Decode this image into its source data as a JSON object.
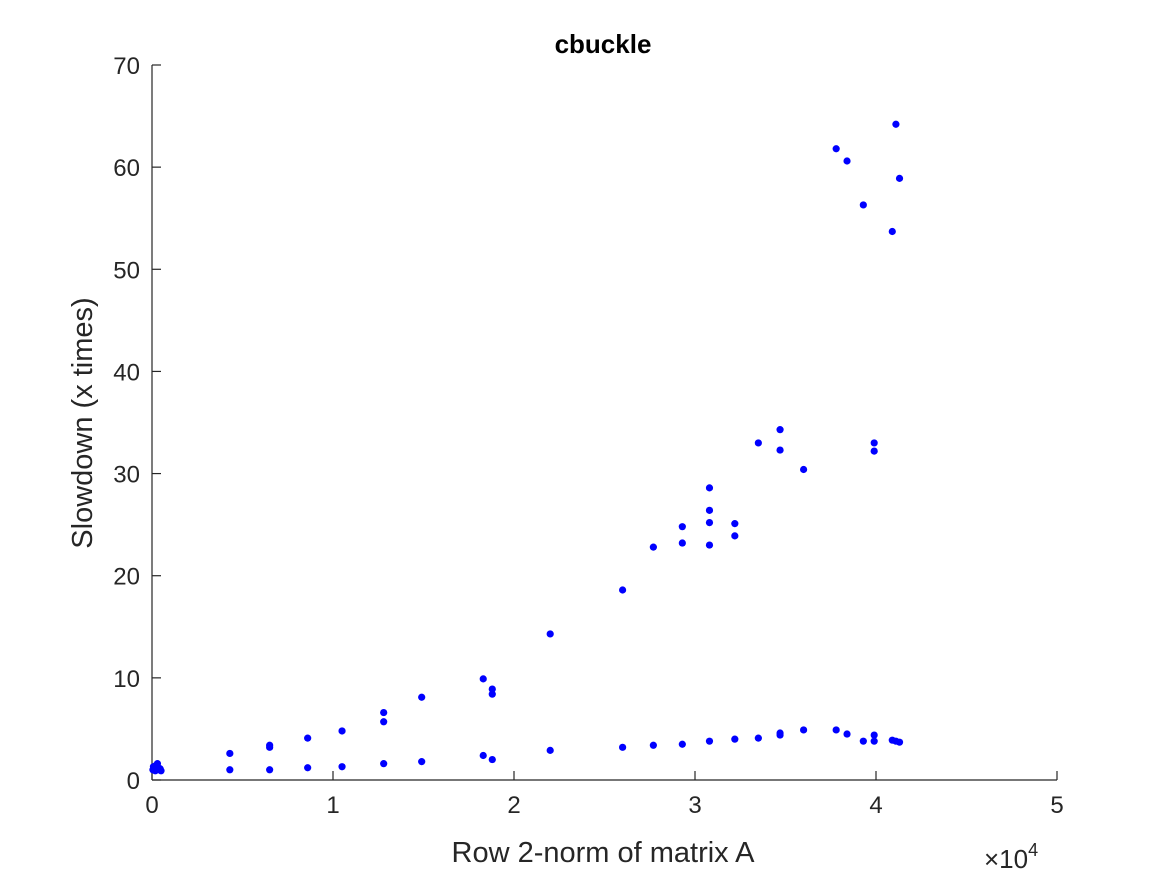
{
  "chart_data": {
    "type": "scatter",
    "title": "cbuckle",
    "xlabel": "Row 2-norm of matrix A",
    "ylabel": "Slowdown (x times)",
    "x_exponent_label": "×10",
    "x_exponent_power": "4",
    "x_scale_factor": 10000,
    "xlim": [
      0,
      50000
    ],
    "ylim": [
      0,
      70
    ],
    "x_ticks": [
      0,
      10000,
      20000,
      30000,
      40000,
      50000
    ],
    "x_tick_labels": [
      "0",
      "1",
      "2",
      "3",
      "4",
      "5"
    ],
    "y_ticks": [
      0,
      10,
      20,
      30,
      40,
      50,
      60,
      70
    ],
    "y_tick_labels": [
      "0",
      "10",
      "20",
      "30",
      "40",
      "50",
      "60",
      "70"
    ],
    "grid": false,
    "marker_color": "#0000ff",
    "series": [
      {
        "points": [
          [
            50,
            1.0
          ],
          [
            80,
            1.3
          ],
          [
            120,
            1.1
          ],
          [
            150,
            1.2
          ],
          [
            180,
            0.9
          ],
          [
            200,
            1.4
          ],
          [
            250,
            1.0
          ],
          [
            300,
            1.6
          ],
          [
            350,
            1.2
          ],
          [
            400,
            1.0
          ],
          [
            450,
            1.1
          ],
          [
            500,
            0.9
          ],
          [
            4300,
            2.6
          ],
          [
            4300,
            1.0
          ],
          [
            6500,
            3.4
          ],
          [
            6500,
            3.2
          ],
          [
            6500,
            1.0
          ],
          [
            8600,
            4.1
          ],
          [
            8600,
            1.2
          ],
          [
            10500,
            4.8
          ],
          [
            10500,
            1.3
          ],
          [
            12800,
            6.6
          ],
          [
            12800,
            5.7
          ],
          [
            12800,
            1.6
          ],
          [
            14900,
            8.1
          ],
          [
            14900,
            1.8
          ],
          [
            18300,
            9.9
          ],
          [
            18300,
            2.4
          ],
          [
            18800,
            8.9
          ],
          [
            18800,
            8.4
          ],
          [
            18800,
            2.0
          ],
          [
            22000,
            14.3
          ],
          [
            22000,
            2.9
          ],
          [
            26000,
            18.6
          ],
          [
            26000,
            3.2
          ],
          [
            27700,
            22.8
          ],
          [
            27700,
            3.4
          ],
          [
            29300,
            24.8
          ],
          [
            29300,
            23.2
          ],
          [
            29300,
            3.5
          ],
          [
            30800,
            28.6
          ],
          [
            30800,
            26.4
          ],
          [
            30800,
            25.2
          ],
          [
            30800,
            23.0
          ],
          [
            30800,
            3.8
          ],
          [
            32200,
            25.1
          ],
          [
            32200,
            23.9
          ],
          [
            32200,
            4.0
          ],
          [
            33500,
            33.0
          ],
          [
            33500,
            4.1
          ],
          [
            34700,
            34.3
          ],
          [
            34700,
            32.3
          ],
          [
            34700,
            4.6
          ],
          [
            34700,
            4.4
          ],
          [
            36000,
            30.4
          ],
          [
            36000,
            4.9
          ],
          [
            37800,
            61.8
          ],
          [
            37800,
            4.9
          ],
          [
            38400,
            60.6
          ],
          [
            38400,
            4.5
          ],
          [
            39300,
            56.3
          ],
          [
            39300,
            3.8
          ],
          [
            39900,
            33.0
          ],
          [
            39900,
            32.2
          ],
          [
            39900,
            4.4
          ],
          [
            39900,
            3.8
          ],
          [
            40900,
            53.7
          ],
          [
            40900,
            3.9
          ],
          [
            41100,
            64.2
          ],
          [
            41100,
            3.8
          ],
          [
            41300,
            58.9
          ],
          [
            41300,
            3.7
          ]
        ]
      }
    ]
  }
}
